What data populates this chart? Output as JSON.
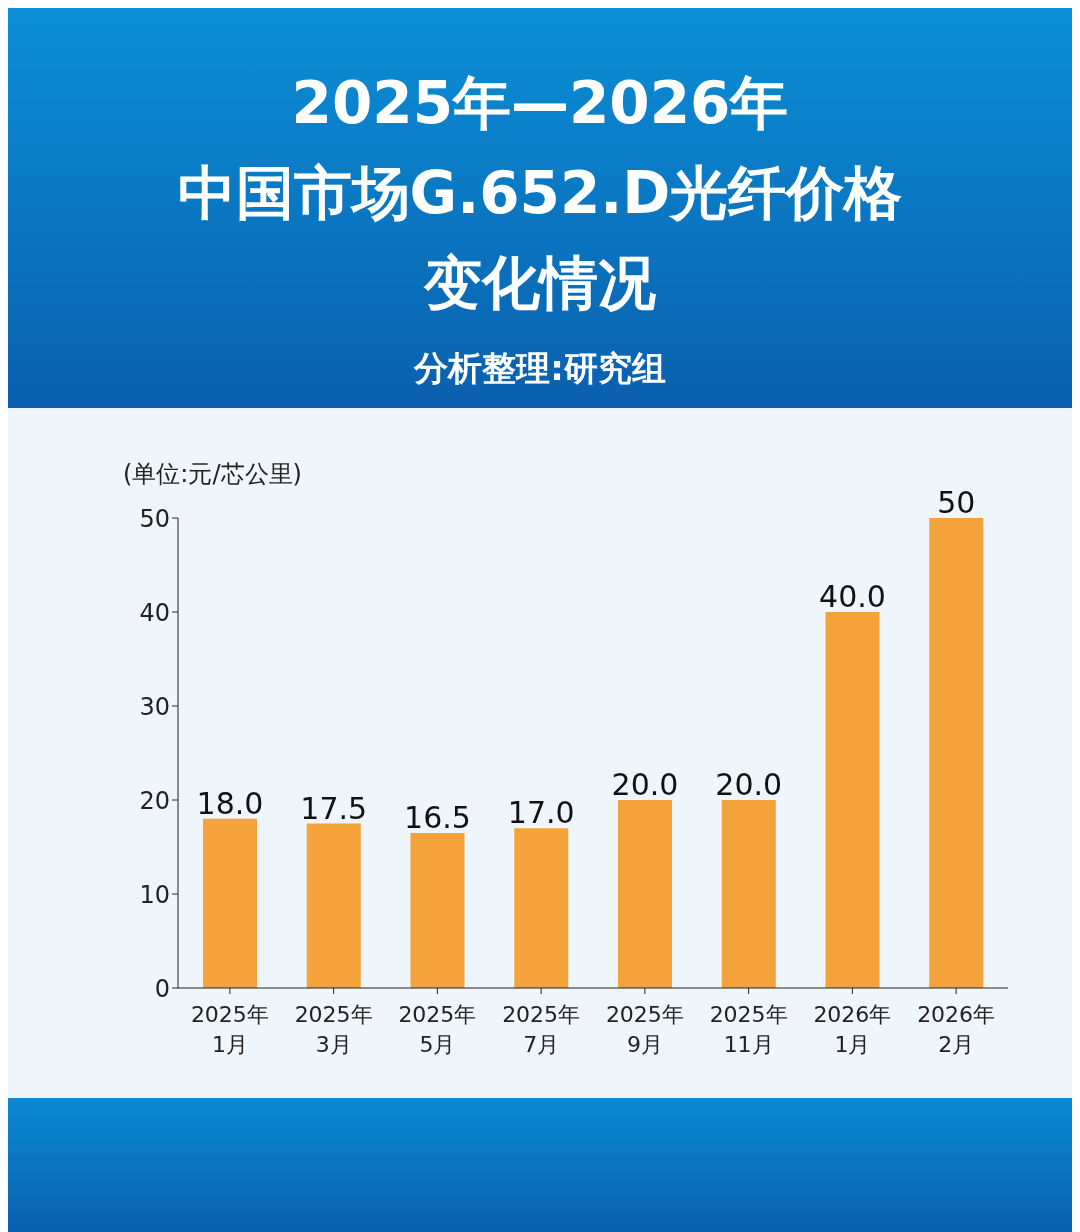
{
  "chart_data": {
    "type": "bar",
    "title": "2025年—2026年中国市场G.652.D光纤价格变化情况",
    "subtitle": "分析整理:研究组",
    "ylabel": "(单位:元/芯公里)",
    "categories": [
      "2025年\n1月",
      "2025年\n3月",
      "2025年\n5月",
      "2025年\n7月",
      "2025年\n9月",
      "2025年\n11月",
      "2026年\n1月",
      "2026年\n2月"
    ],
    "values": [
      18.0,
      17.5,
      16.5,
      17.0,
      20.0,
      20.0,
      40.0,
      50
    ],
    "value_labels": [
      "18.0",
      "17.5",
      "16.5",
      "17.0",
      "20.0",
      "20.0",
      "40.0",
      "50"
    ],
    "color": "#f4a23a",
    "ylim": [
      0,
      50
    ],
    "yticks": [
      0,
      10,
      20,
      30,
      40,
      50
    ],
    "grid": false,
    "legend": false
  }
}
